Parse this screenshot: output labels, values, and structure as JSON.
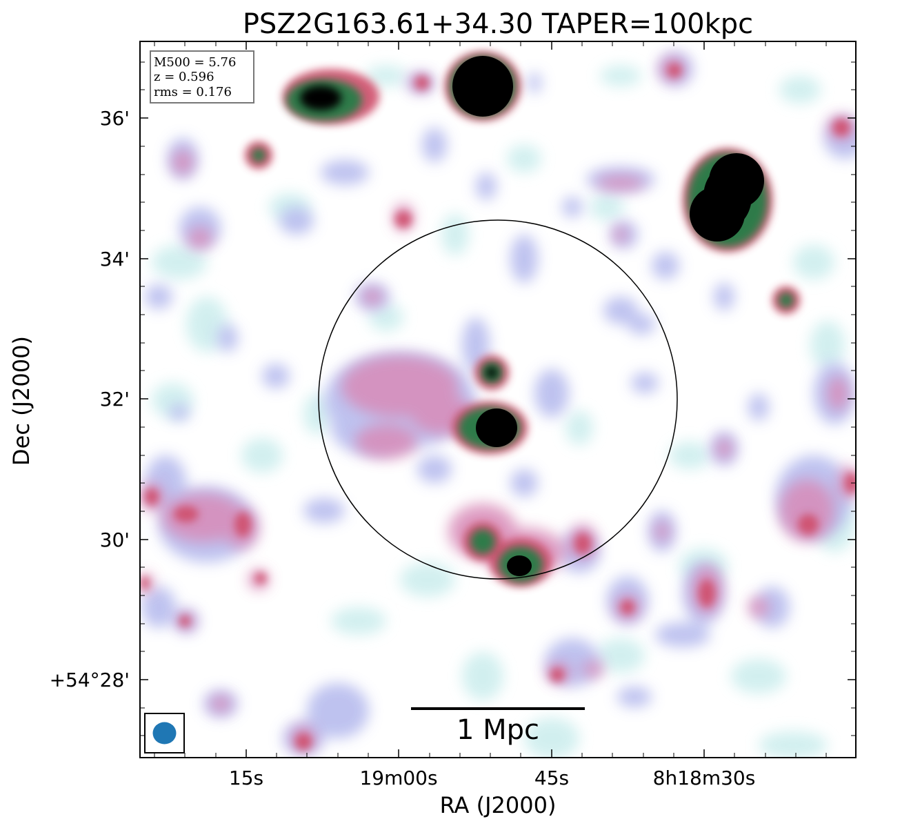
{
  "title": "PSZ2G163.61+34.30 TAPER=100kpc",
  "axes": {
    "xlabel": "RA (J2000)",
    "ylabel": "Dec (J2000)",
    "x_ticks": [
      "15s",
      "19m00s",
      "45s",
      "8h18m30s"
    ],
    "y_ticks": [
      "36'",
      "34'",
      "32'",
      "30'",
      "+54°28'"
    ]
  },
  "info_box": {
    "line1": "M500 = 5.76",
    "line2": "z = 0.596",
    "line3": "rms = 0.176"
  },
  "scale_bar": {
    "label": "1 Mpc"
  },
  "colormap": {
    "low": "#c8ebeb",
    "mid_blue": "#b4b9ec",
    "mid_pink": "#d37fae",
    "high": "#cc4a62",
    "higher": "#2f7a4a",
    "peak": "#000000"
  },
  "beam_color": "#1f77b4"
}
